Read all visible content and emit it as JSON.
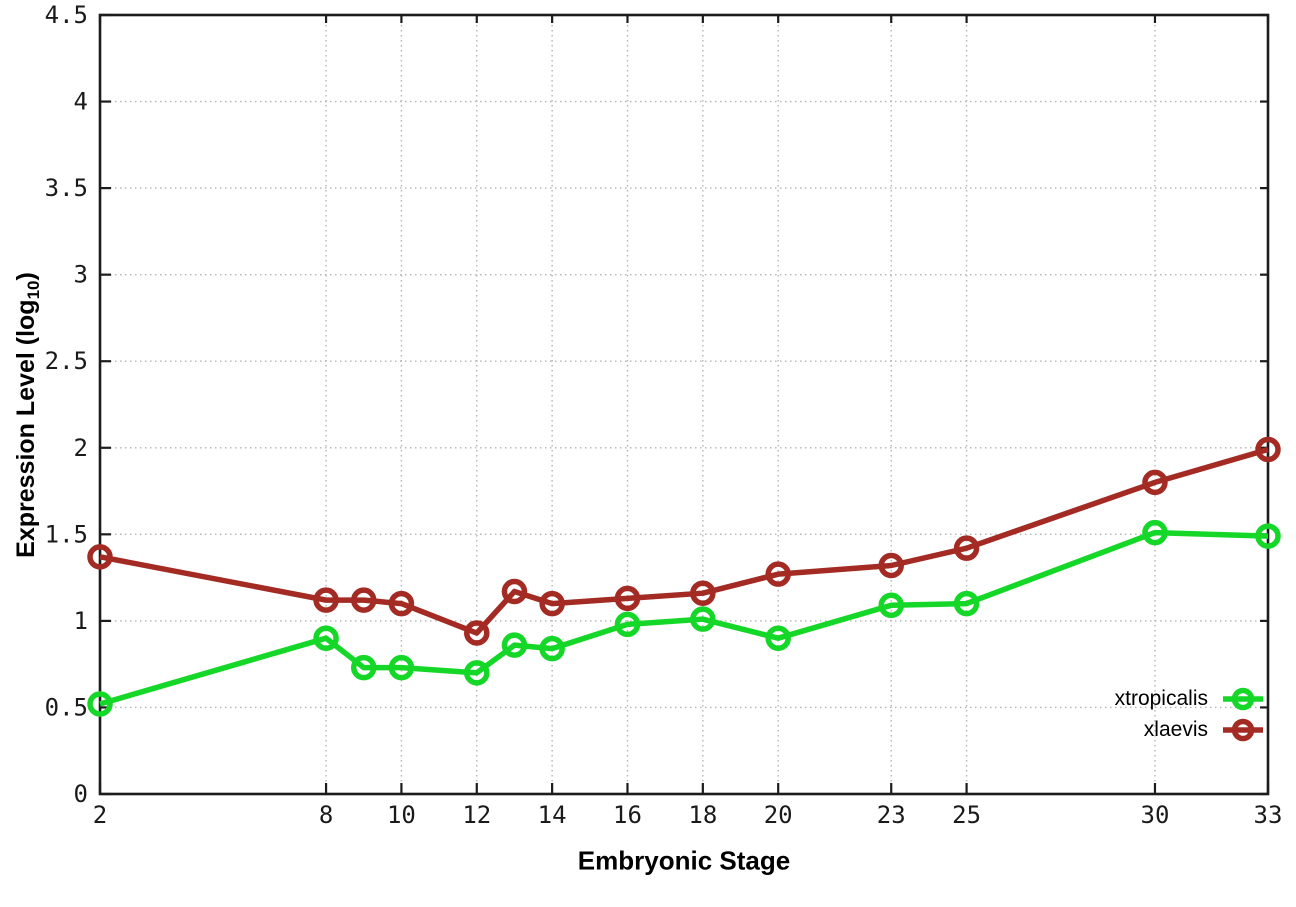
{
  "chart_data": {
    "type": "line",
    "title": "",
    "xlabel": "Embryonic Stage",
    "ylabel_prefix": "Expression Level (log",
    "ylabel_sub": "10",
    "ylabel_suffix": ")",
    "x": [
      2,
      8,
      9,
      10,
      12,
      13,
      14,
      16,
      18,
      20,
      23,
      25,
      30,
      33
    ],
    "series": [
      {
        "name": "xtropicalis",
        "color": "#14d728",
        "values": [
          0.52,
          0.9,
          0.73,
          0.73,
          0.7,
          0.86,
          0.84,
          0.98,
          1.01,
          0.9,
          1.09,
          1.1,
          1.51,
          1.49
        ]
      },
      {
        "name": "xlaevis",
        "color": "#a42b24",
        "values": [
          1.37,
          1.12,
          1.12,
          1.1,
          0.93,
          1.17,
          1.1,
          1.13,
          1.16,
          1.27,
          1.32,
          1.42,
          1.8,
          1.99
        ]
      }
    ],
    "xticks": [
      2,
      8,
      10,
      12,
      14,
      16,
      18,
      20,
      23,
      25,
      30,
      33
    ],
    "xtick_labels": [
      "2",
      "8",
      "10",
      "12",
      "14",
      "16",
      "18",
      "20",
      "23",
      "25",
      "30",
      "33"
    ],
    "yticks": [
      0,
      0.5,
      1,
      1.5,
      2,
      2.5,
      3,
      3.5,
      4,
      4.5
    ],
    "ytick_labels": [
      "0",
      "0.5",
      "1",
      "1.5",
      "2",
      "2.5",
      "3",
      "3.5",
      "4",
      "4.5"
    ],
    "xlim": [
      2,
      33
    ],
    "ylim": [
      0,
      4.5
    ],
    "grid": true,
    "grid_style": "dotted",
    "legend_position": "inside-bottom-right",
    "marker": "open-circle"
  },
  "colors": {
    "background": "#ffffff",
    "axis": "#1c1c1c",
    "grid": "#b4b4b4",
    "text": "#000000",
    "tick_text": "#1a1a1a"
  }
}
